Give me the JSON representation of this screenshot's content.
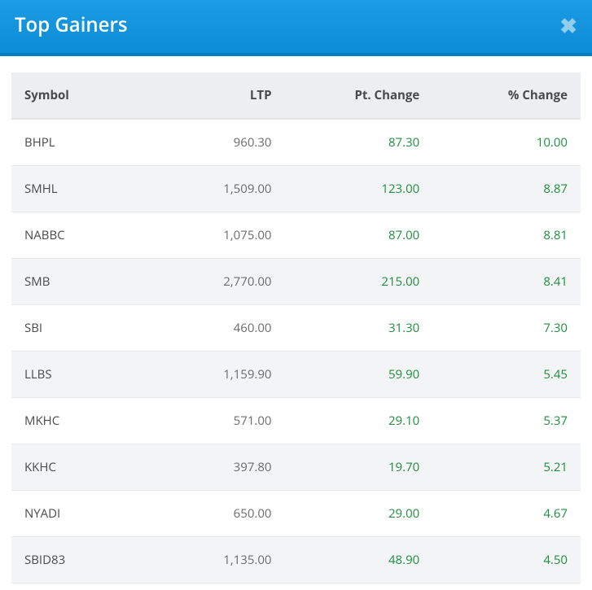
{
  "header": {
    "title": "Top Gainers",
    "close_glyph": "✖"
  },
  "table": {
    "columns": [
      "Symbol",
      "LTP",
      "Pt. Change",
      "% Change"
    ],
    "col_align": [
      "left",
      "right",
      "right",
      "right"
    ],
    "rows": [
      {
        "symbol": "BHPL",
        "ltp": "960.30",
        "pt_change": "87.30",
        "pct_change": "10.00"
      },
      {
        "symbol": "SMHL",
        "ltp": "1,509.00",
        "pt_change": "123.00",
        "pct_change": "8.87"
      },
      {
        "symbol": "NABBC",
        "ltp": "1,075.00",
        "pt_change": "87.00",
        "pct_change": "8.81"
      },
      {
        "symbol": "SMB",
        "ltp": "2,770.00",
        "pt_change": "215.00",
        "pct_change": "8.41"
      },
      {
        "symbol": "SBI",
        "ltp": "460.00",
        "pt_change": "31.30",
        "pct_change": "7.30"
      },
      {
        "symbol": "LLBS",
        "ltp": "1,159.90",
        "pt_change": "59.90",
        "pct_change": "5.45"
      },
      {
        "symbol": "MKHC",
        "ltp": "571.00",
        "pt_change": "29.10",
        "pct_change": "5.37"
      },
      {
        "symbol": "KKHC",
        "ltp": "397.80",
        "pt_change": "19.70",
        "pct_change": "5.21"
      },
      {
        "symbol": "NYADI",
        "ltp": "650.00",
        "pt_change": "29.00",
        "pct_change": "4.67"
      },
      {
        "symbol": "SBID83",
        "ltp": "1,135.00",
        "pt_change": "48.90",
        "pct_change": "4.50"
      }
    ]
  },
  "colors": {
    "header_bg": "#0c8cd5",
    "header_text": "#ffffff",
    "close_icon": "#a8d7f0",
    "row_alt_bg": "#f3f4f5",
    "thead_bg": "#eceeef",
    "positive": "#1e8e3e",
    "text": "#555555",
    "border": "#e7e9eb"
  }
}
